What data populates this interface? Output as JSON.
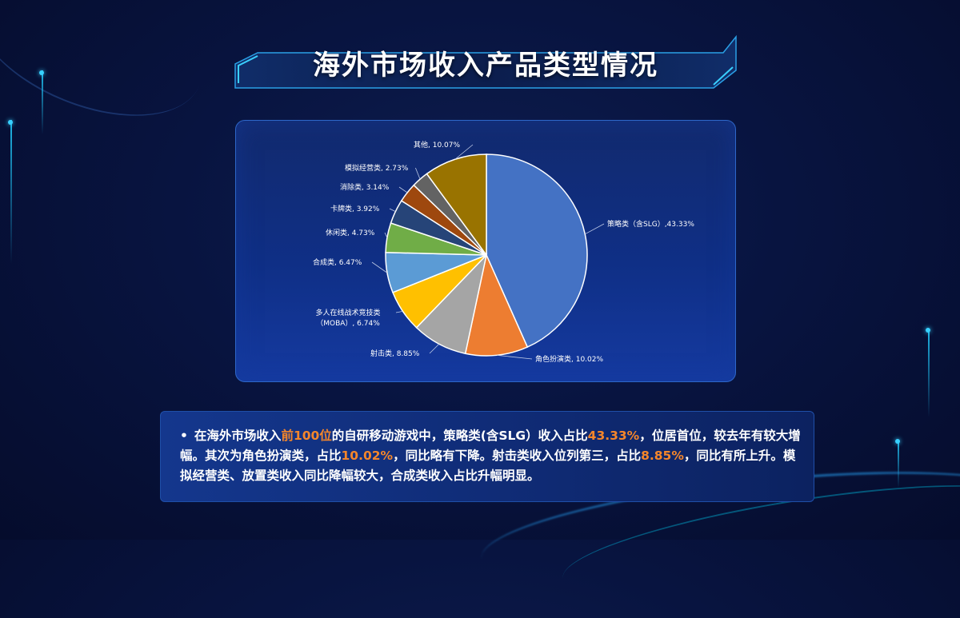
{
  "page": {
    "title": "海外市场收入产品类型情况"
  },
  "chart_data": {
    "type": "pie",
    "title": "",
    "slices": [
      {
        "name": "策略类（含SLG）",
        "value": 43.33,
        "label": "策略类（含SLG）,43.33%",
        "color": "#4472c4"
      },
      {
        "name": "角色扮演类",
        "value": 10.02,
        "label": "角色扮演类, 10.02%",
        "color": "#ed7d31"
      },
      {
        "name": "射击类",
        "value": 8.85,
        "label": "射击类, 8.85%",
        "color": "#a5a5a5"
      },
      {
        "name": "多人在线战术竞技类（MOBA）",
        "value": 6.74,
        "label": "多人在线战术竞技类\n（MOBA）, 6.74%",
        "color": "#ffc000"
      },
      {
        "name": "合成类",
        "value": 6.47,
        "label": "合成类, 6.47%",
        "color": "#5b9bd5"
      },
      {
        "name": "休闲类",
        "value": 4.73,
        "label": "休闲类, 4.73%",
        "color": "#70ad47"
      },
      {
        "name": "卡牌类",
        "value": 3.92,
        "label": "卡牌类, 3.92%",
        "color": "#264478"
      },
      {
        "name": "消除类",
        "value": 3.14,
        "label": "消除类, 3.14%",
        "color": "#9e480e"
      },
      {
        "name": "模拟经营类",
        "value": 2.73,
        "label": "模拟经营类, 2.73%",
        "color": "#636363"
      },
      {
        "name": "其他",
        "value": 10.07,
        "label": "其他, 10.07%",
        "color": "#997300"
      }
    ]
  },
  "summary": {
    "bullet": "•",
    "p1": "在海外市场收入",
    "h1": "前100位",
    "p2": "的自研移动游戏中，策略类(含SLG）收入占比",
    "h2": "43.33%",
    "p3": "，位居首位，较去年有较大增幅。其次为角色扮演类，占比",
    "h3": "10.02%",
    "p4": "，同比略有下降。射击类收入位列第三，占比",
    "h4": "8.85%",
    "p5": "，同比有所上升。模拟经营类、放置类收入同比降幅较大，合成类收入占比升幅明显。"
  }
}
